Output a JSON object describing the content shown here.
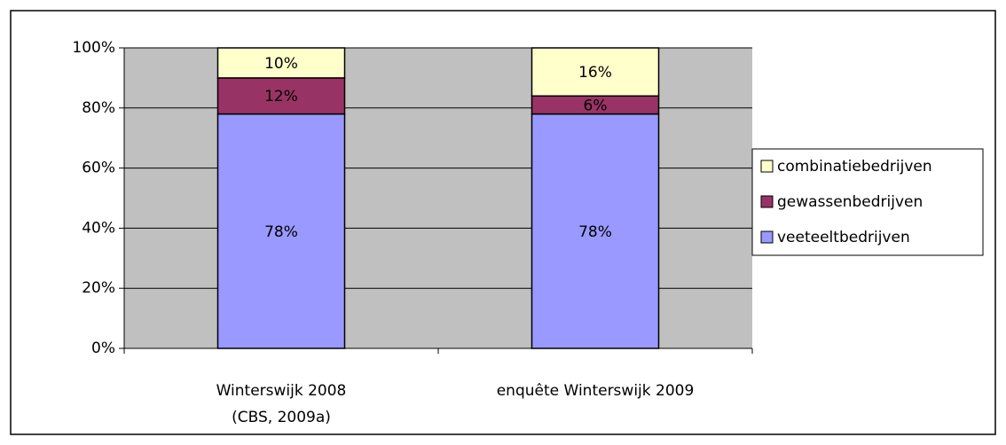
{
  "chart_data": {
    "type": "stacked_bar",
    "categories": [
      "Winterswijk 2008\n(CBS, 2009a)",
      "enquête Winterswijk 2009"
    ],
    "series": [
      {
        "name": "veeteeltbedrijven",
        "color": "#9999ff",
        "values": [
          78,
          78
        ],
        "value_labels": [
          "78%",
          "78%"
        ]
      },
      {
        "name": "gewassenbedrijven",
        "color": "#993366",
        "values": [
          12,
          6
        ],
        "value_labels": [
          "12%",
          "6%"
        ]
      },
      {
        "name": "combinatiebedrijven",
        "color": "#ffffcc",
        "values": [
          10,
          16
        ],
        "value_labels": [
          "10%",
          "16%"
        ]
      }
    ],
    "ylim": [
      0,
      100
    ],
    "yticks": [
      {
        "value": 0,
        "label": "0%"
      },
      {
        "value": 20,
        "label": "20%"
      },
      {
        "value": 40,
        "label": "40%"
      },
      {
        "value": 60,
        "label": "60%"
      },
      {
        "value": 80,
        "label": "80%"
      },
      {
        "value": 100,
        "label": "100%"
      }
    ],
    "grid": true,
    "legend": "right",
    "plot_background": "#c0c0c0"
  }
}
